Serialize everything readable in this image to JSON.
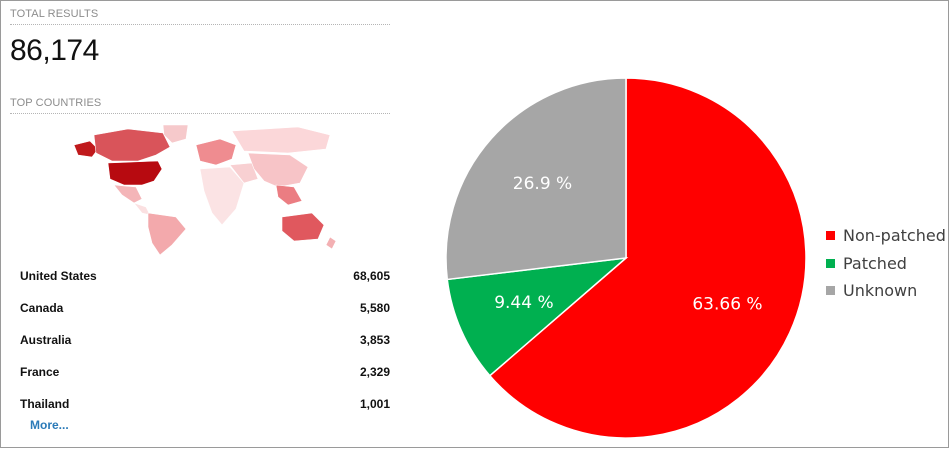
{
  "stats": {
    "total_results_label": "TOTAL RESULTS",
    "total_results_value": "86,174",
    "top_countries_label": "TOP COUNTRIES"
  },
  "countries": [
    {
      "name": "United States",
      "count": "68,605"
    },
    {
      "name": "Canada",
      "count": "5,580"
    },
    {
      "name": "Australia",
      "count": "3,853"
    },
    {
      "name": "France",
      "count": "2,329"
    },
    {
      "name": "Thailand",
      "count": "1,001"
    }
  ],
  "more_link": "More...",
  "colors": {
    "non_patched": "#ff0000",
    "patched": "#00b050",
    "unknown": "#a6a6a6",
    "link": "#2a7ab8"
  },
  "chart_data": {
    "type": "pie",
    "title": "",
    "slices": [
      {
        "name": "Non-patched",
        "value": 63.66,
        "label": "63.66 %",
        "color": "#ff0000"
      },
      {
        "name": "Patched",
        "value": 9.44,
        "label": "9.44 %",
        "color": "#00b050"
      },
      {
        "name": "Unknown",
        "value": 26.9,
        "label": "26.9 %",
        "color": "#a6a6a6"
      }
    ],
    "legend_position": "right"
  }
}
